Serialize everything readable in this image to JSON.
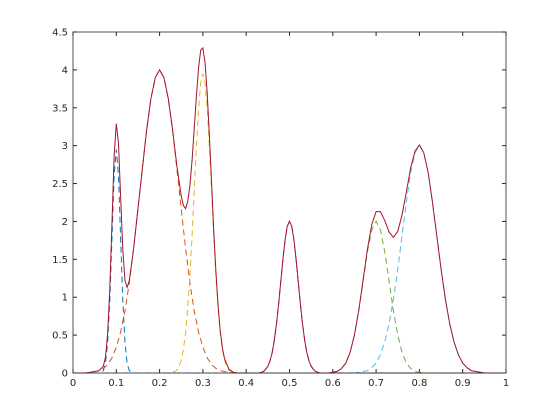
{
  "chart_data": {
    "type": "line",
    "xlim": [
      0,
      1
    ],
    "xticks": [
      0,
      0.1,
      0.2,
      0.3,
      0.4,
      0.5,
      0.6,
      0.7,
      0.8,
      0.9,
      1
    ],
    "ylim": [
      0,
      4.5
    ],
    "yticks": [
      0,
      0.5,
      1,
      1.5,
      2,
      2.5,
      3,
      3.5,
      4,
      4.5
    ],
    "grid": false,
    "box": true,
    "series": [
      {
        "color": "#0072BD",
        "line_style": "dashed",
        "x": [
          0,
          0.06,
          0.065,
          0.07,
          0.075,
          0.08,
          0.085,
          0.09,
          0.095,
          0.1,
          0.105,
          0.11,
          0.115,
          0.12,
          0.125,
          0.13,
          0.135,
          0.14,
          1
        ],
        "values": [
          0,
          0,
          0.01,
          0.03,
          0.13,
          0.4,
          0.96,
          1.79,
          2.6,
          2.95,
          2.6,
          1.79,
          0.96,
          0.4,
          0.13,
          0.03,
          0.01,
          0,
          0
        ]
      },
      {
        "color": "#D95319",
        "line_style": "dashed",
        "x": [
          0,
          0.03,
          0.04,
          0.05,
          0.06,
          0.07,
          0.08,
          0.09,
          0.1,
          0.11,
          0.12,
          0.13,
          0.14,
          0.15,
          0.16,
          0.17,
          0.18,
          0.19,
          0.2,
          0.21,
          0.22,
          0.23,
          0.24,
          0.25,
          0.26,
          0.27,
          0.28,
          0.29,
          0.3,
          0.31,
          0.32,
          0.33,
          0.34,
          0.35,
          0.36,
          0.37,
          1
        ],
        "values": [
          0,
          0,
          0.01,
          0.02,
          0.03,
          0.06,
          0.11,
          0.2,
          0.34,
          0.54,
          0.82,
          1.19,
          1.64,
          2.16,
          2.69,
          3.2,
          3.62,
          3.9,
          4,
          3.9,
          3.62,
          3.2,
          2.69,
          2.16,
          1.64,
          1.19,
          0.82,
          0.54,
          0.34,
          0.2,
          0.11,
          0.06,
          0.03,
          0.02,
          0.01,
          0,
          0
        ]
      },
      {
        "color": "#EDB120",
        "line_style": "dashed",
        "x": [
          0,
          0.225,
          0.23,
          0.235,
          0.24,
          0.245,
          0.25,
          0.255,
          0.26,
          0.265,
          0.27,
          0.275,
          0.28,
          0.285,
          0.29,
          0.295,
          0.3,
          0.305,
          0.31,
          0.315,
          0.32,
          0.325,
          0.33,
          0.335,
          0.34,
          0.345,
          0.35,
          0.355,
          0.36,
          0.365,
          0.37,
          0.375,
          1
        ],
        "values": [
          0,
          0,
          0.01,
          0.02,
          0.04,
          0.09,
          0.17,
          0.31,
          0.53,
          0.85,
          1.28,
          1.81,
          2.4,
          2.98,
          3.49,
          3.83,
          3.95,
          3.83,
          3.49,
          2.98,
          2.4,
          1.81,
          1.28,
          0.85,
          0.53,
          0.31,
          0.17,
          0.09,
          0.04,
          0.02,
          0.01,
          0,
          0
        ]
      },
      {
        "color": "#7E2F8E",
        "line_style": "dashed",
        "x": [
          0,
          0.43,
          0.435,
          0.44,
          0.445,
          0.45,
          0.455,
          0.46,
          0.465,
          0.47,
          0.475,
          0.48,
          0.485,
          0.49,
          0.495,
          0.5,
          0.505,
          0.51,
          0.515,
          0.52,
          0.525,
          0.53,
          0.535,
          0.54,
          0.545,
          0.55,
          0.555,
          0.56,
          0.565,
          0.57,
          1
        ],
        "values": [
          0,
          0,
          0.01,
          0.02,
          0.05,
          0.09,
          0.16,
          0.27,
          0.43,
          0.65,
          0.92,
          1.21,
          1.51,
          1.77,
          1.94,
          2,
          1.94,
          1.77,
          1.51,
          1.21,
          0.92,
          0.65,
          0.43,
          0.27,
          0.16,
          0.09,
          0.05,
          0.02,
          0.01,
          0,
          0
        ]
      },
      {
        "color": "#77AC30",
        "line_style": "dashed",
        "x": [
          0,
          0.59,
          0.6,
          0.61,
          0.62,
          0.63,
          0.64,
          0.65,
          0.66,
          0.67,
          0.68,
          0.69,
          0.7,
          0.71,
          0.72,
          0.73,
          0.74,
          0.75,
          0.76,
          0.77,
          0.78,
          0.79,
          0.8,
          0.81,
          1
        ],
        "values": [
          0,
          0,
          0.01,
          0.02,
          0.06,
          0.13,
          0.27,
          0.5,
          0.82,
          1.21,
          1.6,
          1.89,
          2,
          1.89,
          1.6,
          1.21,
          0.82,
          0.5,
          0.27,
          0.13,
          0.06,
          0.02,
          0.01,
          0,
          0
        ]
      },
      {
        "color": "#4DBEEE",
        "line_style": "dashed",
        "x": [
          0,
          0.65,
          0.66,
          0.67,
          0.68,
          0.69,
          0.7,
          0.71,
          0.72,
          0.73,
          0.74,
          0.75,
          0.76,
          0.77,
          0.78,
          0.79,
          0.8,
          0.81,
          0.82,
          0.83,
          0.84,
          0.85,
          0.86,
          0.87,
          0.88,
          0.89,
          0.9,
          0.91,
          0.92,
          0.93,
          0.94,
          0.95,
          1
        ],
        "values": [
          0,
          0,
          0.01,
          0.02,
          0.03,
          0.07,
          0.13,
          0.24,
          0.41,
          0.65,
          0.97,
          1.37,
          1.82,
          2.26,
          2.65,
          2.91,
          3,
          2.91,
          2.65,
          2.26,
          1.82,
          1.37,
          0.97,
          0.65,
          0.41,
          0.24,
          0.13,
          0.07,
          0.03,
          0.02,
          0.01,
          0,
          0
        ]
      },
      {
        "color": "#A2142F",
        "line_style": "solid",
        "x": [
          0,
          0.01,
          0.02,
          0.03,
          0.04,
          0.05,
          0.06,
          0.07,
          0.075,
          0.08,
          0.085,
          0.09,
          0.095,
          0.1,
          0.105,
          0.11,
          0.115,
          0.12,
          0.125,
          0.13,
          0.14,
          0.15,
          0.16,
          0.17,
          0.18,
          0.19,
          0.2,
          0.21,
          0.22,
          0.23,
          0.24,
          0.25,
          0.255,
          0.26,
          0.265,
          0.27,
          0.275,
          0.28,
          0.285,
          0.29,
          0.295,
          0.3,
          0.305,
          0.31,
          0.315,
          0.32,
          0.325,
          0.33,
          0.335,
          0.34,
          0.345,
          0.35,
          0.36,
          0.37,
          0.38,
          0.39,
          0.4,
          0.41,
          0.42,
          0.43,
          0.44,
          0.445,
          0.45,
          0.455,
          0.46,
          0.465,
          0.47,
          0.475,
          0.48,
          0.485,
          0.49,
          0.495,
          0.5,
          0.505,
          0.51,
          0.515,
          0.52,
          0.525,
          0.53,
          0.535,
          0.54,
          0.545,
          0.55,
          0.555,
          0.56,
          0.57,
          0.58,
          0.59,
          0.6,
          0.61,
          0.62,
          0.63,
          0.64,
          0.65,
          0.66,
          0.67,
          0.68,
          0.69,
          0.7,
          0.71,
          0.72,
          0.73,
          0.74,
          0.75,
          0.76,
          0.77,
          0.78,
          0.79,
          0.8,
          0.81,
          0.82,
          0.83,
          0.84,
          0.85,
          0.86,
          0.87,
          0.88,
          0.89,
          0.9,
          0.91,
          0.92,
          0.93,
          0.94,
          0.95,
          0.96,
          0.97,
          0.98,
          0.99,
          1
        ],
        "values": [
          0,
          0,
          0,
          0,
          0.01,
          0.02,
          0.03,
          0.09,
          0.21,
          0.51,
          1.11,
          1.99,
          2.86,
          3.29,
          3.03,
          2.33,
          1.63,
          1.22,
          1.13,
          1.22,
          1.64,
          2.16,
          2.69,
          3.2,
          3.62,
          3.9,
          4.0,
          3.9,
          3.62,
          3.21,
          2.73,
          2.33,
          2.21,
          2.17,
          2.26,
          2.47,
          2.81,
          3.22,
          3.65,
          4.03,
          4.26,
          4.29,
          4.09,
          3.69,
          3.13,
          2.51,
          1.89,
          1.34,
          0.89,
          0.56,
          0.33,
          0.19,
          0.05,
          0.01,
          0,
          0,
          0,
          0,
          0,
          0,
          0.02,
          0.05,
          0.09,
          0.16,
          0.27,
          0.43,
          0.65,
          0.92,
          1.21,
          1.51,
          1.77,
          1.94,
          2.0,
          1.94,
          1.77,
          1.51,
          1.21,
          0.92,
          0.65,
          0.43,
          0.27,
          0.16,
          0.09,
          0.05,
          0.02,
          0,
          0,
          0,
          0.01,
          0.02,
          0.06,
          0.13,
          0.27,
          0.5,
          0.83,
          1.23,
          1.63,
          1.96,
          2.13,
          2.13,
          2.01,
          1.86,
          1.79,
          1.87,
          2.09,
          2.39,
          2.71,
          2.93,
          3.01,
          2.91,
          2.65,
          2.26,
          1.82,
          1.37,
          0.97,
          0.65,
          0.41,
          0.24,
          0.13,
          0.07,
          0.03,
          0.02,
          0.01,
          0,
          0,
          0,
          0,
          0,
          0
        ]
      }
    ]
  }
}
